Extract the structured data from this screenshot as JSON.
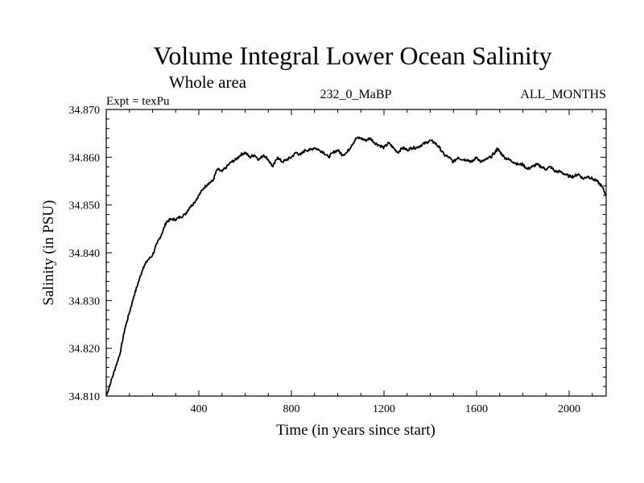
{
  "chart_data": {
    "type": "line",
    "title": "Volume Integral Lower Ocean Salinity",
    "subtitle": "Whole area",
    "experiment_label": "Expt = texPu",
    "center_label": "232_0_MaBP",
    "right_label": "ALL_MONTHS",
    "xlabel": "Time (in years since start)",
    "ylabel": "Salinity (in PSU)",
    "xlim": [
      0,
      2160
    ],
    "ylim": [
      34.81,
      34.87
    ],
    "x_ticks": [
      400,
      800,
      1200,
      1600,
      2000
    ],
    "x_tick_labels": [
      "400",
      "800",
      "1200",
      "1600",
      "2000"
    ],
    "y_ticks": [
      34.81,
      34.82,
      34.83,
      34.84,
      34.85,
      34.86,
      34.87
    ],
    "y_tick_labels": [
      "34.810",
      "34.820",
      "34.830",
      "34.840",
      "34.850",
      "34.860",
      "34.870"
    ],
    "grid": false,
    "series": [
      {
        "name": "Salinity",
        "x": [
          0,
          20,
          40,
          60,
          80,
          100,
          120,
          140,
          160,
          180,
          200,
          220,
          240,
          260,
          280,
          300,
          320,
          340,
          360,
          380,
          400,
          420,
          440,
          460,
          480,
          500,
          520,
          540,
          560,
          580,
          600,
          620,
          640,
          660,
          680,
          700,
          720,
          740,
          760,
          780,
          800,
          820,
          840,
          860,
          880,
          900,
          920,
          940,
          960,
          980,
          1000,
          1020,
          1040,
          1060,
          1080,
          1100,
          1120,
          1140,
          1160,
          1180,
          1200,
          1220,
          1240,
          1260,
          1280,
          1300,
          1320,
          1340,
          1360,
          1380,
          1400,
          1420,
          1440,
          1460,
          1480,
          1500,
          1520,
          1540,
          1560,
          1580,
          1600,
          1620,
          1640,
          1660,
          1680,
          1690,
          1700,
          1720,
          1740,
          1760,
          1780,
          1800,
          1820,
          1840,
          1860,
          1880,
          1900,
          1920,
          1940,
          1960,
          1980,
          2000,
          2020,
          2040,
          2060,
          2080,
          2100,
          2120,
          2140,
          2160
        ],
        "y": [
          34.81,
          34.813,
          34.816,
          34.819,
          34.824,
          34.8275,
          34.831,
          34.834,
          34.837,
          34.8385,
          34.8395,
          34.842,
          34.844,
          34.8465,
          34.847,
          34.847,
          34.8475,
          34.848,
          34.8495,
          34.8505,
          34.852,
          34.8535,
          34.8545,
          34.855,
          34.8575,
          34.857,
          34.858,
          34.859,
          34.8595,
          34.8605,
          34.861,
          34.86,
          34.8605,
          34.8595,
          34.8605,
          34.8595,
          34.858,
          34.86,
          34.859,
          34.8595,
          34.86,
          34.861,
          34.8605,
          34.8615,
          34.8615,
          34.862,
          34.8615,
          34.861,
          34.86,
          34.861,
          34.8615,
          34.8605,
          34.861,
          34.8625,
          34.864,
          34.864,
          34.8635,
          34.864,
          34.863,
          34.8625,
          34.862,
          34.863,
          34.862,
          34.861,
          34.862,
          34.8615,
          34.862,
          34.862,
          34.8625,
          34.863,
          34.8635,
          34.863,
          34.862,
          34.8605,
          34.86,
          34.859,
          34.86,
          34.8595,
          34.8595,
          34.859,
          34.86,
          34.859,
          34.8595,
          34.86,
          34.861,
          34.8618,
          34.8612,
          34.86,
          34.8595,
          34.859,
          34.8585,
          34.8585,
          34.8575,
          34.858,
          34.8585,
          34.858,
          34.8575,
          34.858,
          34.857,
          34.857,
          34.8565,
          34.856,
          34.856,
          34.8565,
          34.8555,
          34.856,
          34.8555,
          34.855,
          34.854,
          34.852
        ]
      }
    ]
  }
}
